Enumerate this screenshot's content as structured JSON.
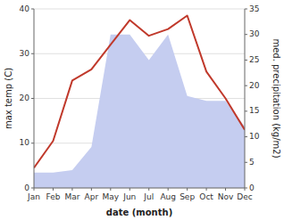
{
  "chart_data": {
    "type": "line",
    "xlabel": "date (month)",
    "ylabel": "max temp (C)",
    "y2label": "med. precipitation (kg/m2)",
    "categories": [
      "Jan",
      "Feb",
      "Mar",
      "Apr",
      "May",
      "Jun",
      "Jul",
      "Aug",
      "Sep",
      "Oct",
      "Nov",
      "Dec"
    ],
    "series": [
      {
        "type": "area",
        "axis": "y2",
        "color": "#c5cdf0",
        "values": [
          3.0,
          3.0,
          3.5,
          8.0,
          30.0,
          30.0,
          25.0,
          30.0,
          18.0,
          17.0,
          17.0,
          12.0
        ]
      },
      {
        "type": "line",
        "color": "#c0392b",
        "values": [
          4.5,
          10.5,
          24.0,
          26.5,
          32.0,
          37.5,
          34.0,
          35.5,
          38.5,
          26.0,
          20.0,
          13.0
        ]
      }
    ],
    "ylim": [
      0,
      40
    ],
    "yticks": [
      0,
      10,
      20,
      30,
      40
    ],
    "y2lim": [
      0,
      35
    ],
    "y2ticks": [
      0,
      5,
      10,
      15,
      20,
      25,
      30,
      35
    ],
    "grid": true
  }
}
